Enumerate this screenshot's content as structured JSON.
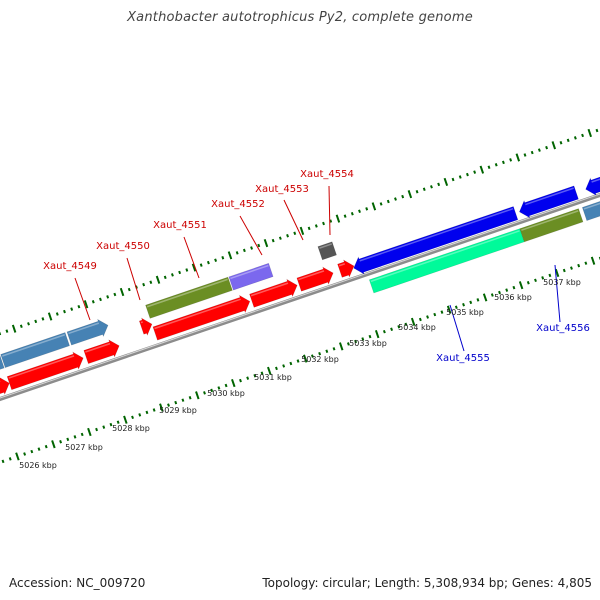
{
  "title": "Xanthobacter autotrophicus Py2, complete genome",
  "footer": {
    "accession": "Accession: NC_009720",
    "summary": "Topology: circular; Length: 5,308,934 bp; Genes: 4,805"
  },
  "scale": {
    "ticks": [
      {
        "label": "5026 kbp"
      },
      {
        "label": "5027 kbp"
      },
      {
        "label": "5028 kbp"
      },
      {
        "label": "5029 kbp"
      },
      {
        "label": "5030 kbp"
      },
      {
        "label": "5031 kbp"
      },
      {
        "label": "5032 kbp"
      },
      {
        "label": "5033 kbp"
      },
      {
        "label": "5034 kbp"
      },
      {
        "label": "5035 kbp"
      },
      {
        "label": "5036 kbp"
      },
      {
        "label": "5037 kbp"
      }
    ]
  },
  "gene_labels": [
    {
      "name": "Xaut_4549",
      "color": "#cc0000"
    },
    {
      "name": "Xaut_4550",
      "color": "#cc0000"
    },
    {
      "name": "Xaut_4551",
      "color": "#cc0000"
    },
    {
      "name": "Xaut_4552",
      "color": "#cc0000"
    },
    {
      "name": "Xaut_4553",
      "color": "#cc0000"
    },
    {
      "name": "Xaut_4554",
      "color": "#cc0000"
    },
    {
      "name": "Xaut_4555",
      "color": "#0000cc"
    },
    {
      "name": "Xaut_4556",
      "color": "#0000cc"
    }
  ],
  "colors": {
    "cds_red": "#ff0000",
    "steelblue": "#4682b4",
    "olive": "#6b8e23",
    "purple": "#7b68ee",
    "blue": "#0000ee",
    "aquamarine": "#00fa9a",
    "darkgray": "#555555",
    "backbone": "#8c8c8c",
    "tick_green": "#006400"
  }
}
